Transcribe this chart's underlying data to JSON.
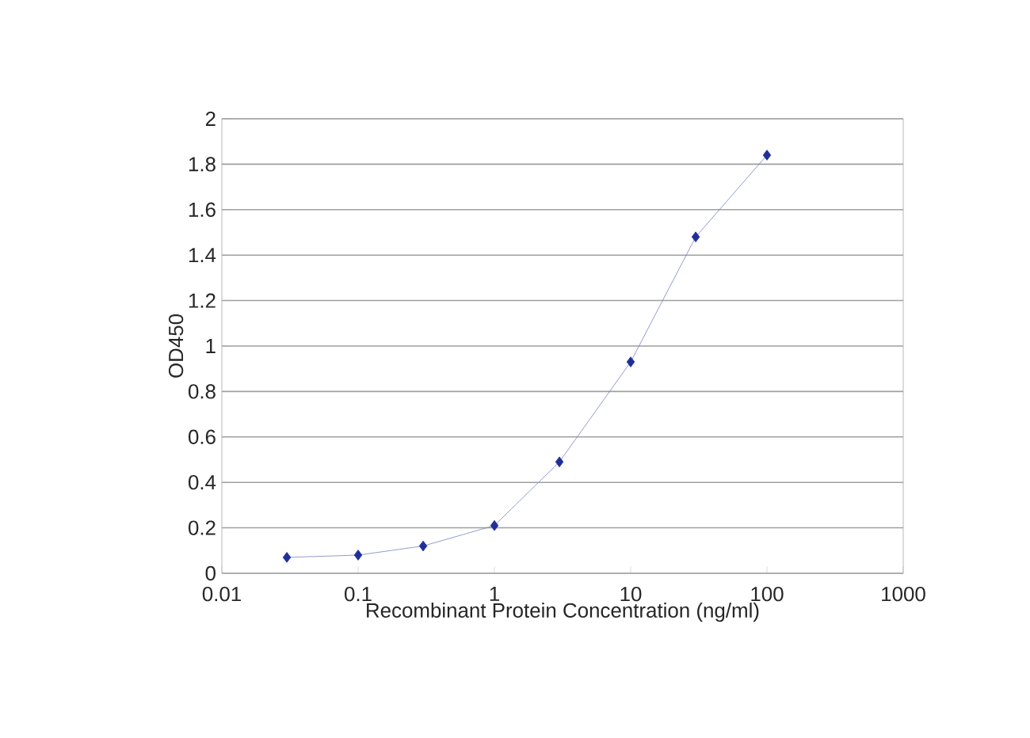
{
  "chart_data": {
    "type": "line",
    "xlabel": "Recombinant Protein Concentration (ng/ml)",
    "ylabel": "OD450",
    "x": [
      0.03,
      0.1,
      0.3,
      1,
      3,
      10,
      30,
      100
    ],
    "series": [
      {
        "color": "#1f2f9a",
        "values": [
          0.07,
          0.08,
          0.12,
          0.21,
          0.49,
          0.93,
          1.48,
          1.84
        ]
      }
    ],
    "log": "x",
    "xlim": [
      0.01,
      1000
    ],
    "xticks": [
      0.01,
      0.1,
      1,
      10,
      100,
      1000
    ],
    "ylim": [
      0,
      2
    ],
    "yticks": [
      0,
      0.2,
      0.4,
      0.6,
      0.8,
      1,
      1.2,
      1.4,
      1.6,
      1.8,
      2
    ],
    "grid": "y",
    "marker": "diamond",
    "line_style": "solid"
  }
}
